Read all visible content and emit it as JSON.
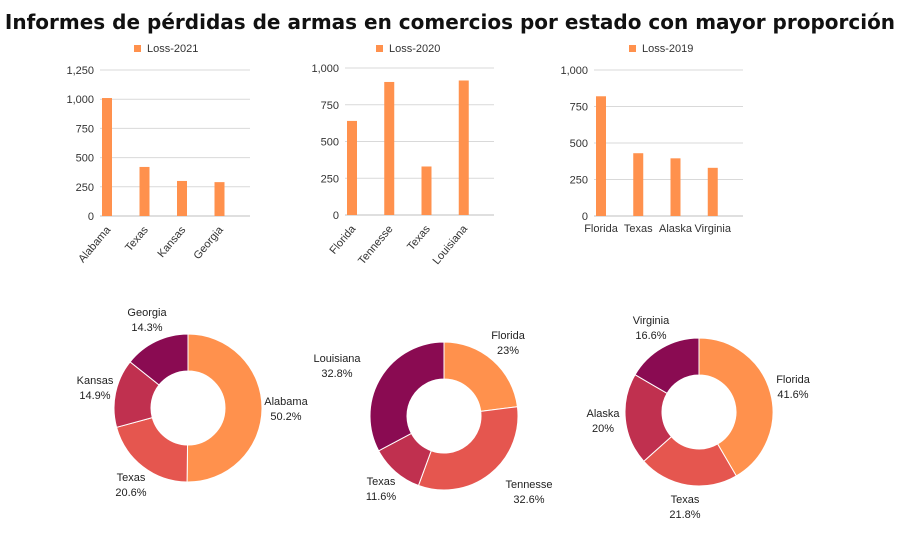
{
  "title": "Informes de pérdidas de armas en comercios por estado con mayor proporción",
  "colors": {
    "bar": "#ff914d",
    "grid": "#d9d9d9",
    "axis": "#bfbfbf"
  },
  "chart_data": [
    {
      "type": "bar",
      "series": [
        {
          "name": "Loss-2021",
          "values": [
            1010,
            420,
            300,
            290
          ]
        }
      ],
      "categories": [
        "Alabama",
        "Texas",
        "Kansas",
        "Georgia"
      ],
      "ylim": [
        0,
        1250
      ],
      "yticks": [
        "0",
        "250",
        "500",
        "750",
        "1,000",
        "1,250"
      ],
      "rotate_labels": true,
      "grid": true,
      "legend": "top"
    },
    {
      "type": "bar",
      "series": [
        {
          "name": "Loss-2020",
          "values": [
            640,
            905,
            330,
            915
          ]
        }
      ],
      "categories": [
        "Florida",
        "Tennesse",
        "Texas",
        "Louisiana"
      ],
      "ylim": [
        0,
        1000
      ],
      "yticks": [
        "0",
        "250",
        "500",
        "750",
        "1,000"
      ],
      "rotate_labels": true,
      "grid": true,
      "legend": "top"
    },
    {
      "type": "bar",
      "series": [
        {
          "name": "Loss-2019",
          "values": [
            820,
            430,
            395,
            330
          ]
        }
      ],
      "categories": [
        "Florida",
        "Texas",
        "Alaska",
        "Virginia"
      ],
      "ylim": [
        0,
        1000
      ],
      "yticks": [
        "0",
        "250",
        "500",
        "750",
        "1,000"
      ],
      "rotate_labels": false,
      "grid": true,
      "legend": "top"
    },
    {
      "type": "pie",
      "donut": true,
      "slices": [
        {
          "label": "Alabama",
          "value": 50.2,
          "text": "50.2%",
          "color": "#ff914d"
        },
        {
          "label": "Texas",
          "value": 20.6,
          "text": "20.6%",
          "color": "#e5564f"
        },
        {
          "label": "Kansas",
          "value": 14.9,
          "text": "14.9%",
          "color": "#c0304f"
        },
        {
          "label": "Georgia",
          "value": 14.3,
          "text": "14.3%",
          "color": "#8a0b52"
        }
      ]
    },
    {
      "type": "pie",
      "donut": true,
      "slices": [
        {
          "label": "Florida",
          "value": 23,
          "text": "23%",
          "color": "#ff914d"
        },
        {
          "label": "Tennesse",
          "value": 32.6,
          "text": "32.6%",
          "color": "#e5564f"
        },
        {
          "label": "Texas",
          "value": 11.6,
          "text": "11.6%",
          "color": "#c0304f"
        },
        {
          "label": "Louisiana",
          "value": 32.8,
          "text": "32.8%",
          "color": "#8a0b52"
        }
      ]
    },
    {
      "type": "pie",
      "donut": true,
      "slices": [
        {
          "label": "Florida",
          "value": 41.6,
          "text": "41.6%",
          "color": "#ff914d"
        },
        {
          "label": "Texas",
          "value": 21.8,
          "text": "21.8%",
          "color": "#e5564f"
        },
        {
          "label": "Alaska",
          "value": 20,
          "text": "20%",
          "color": "#c0304f"
        },
        {
          "label": "Virginia",
          "value": 16.6,
          "text": "16.6%",
          "color": "#8a0b52"
        }
      ]
    }
  ]
}
